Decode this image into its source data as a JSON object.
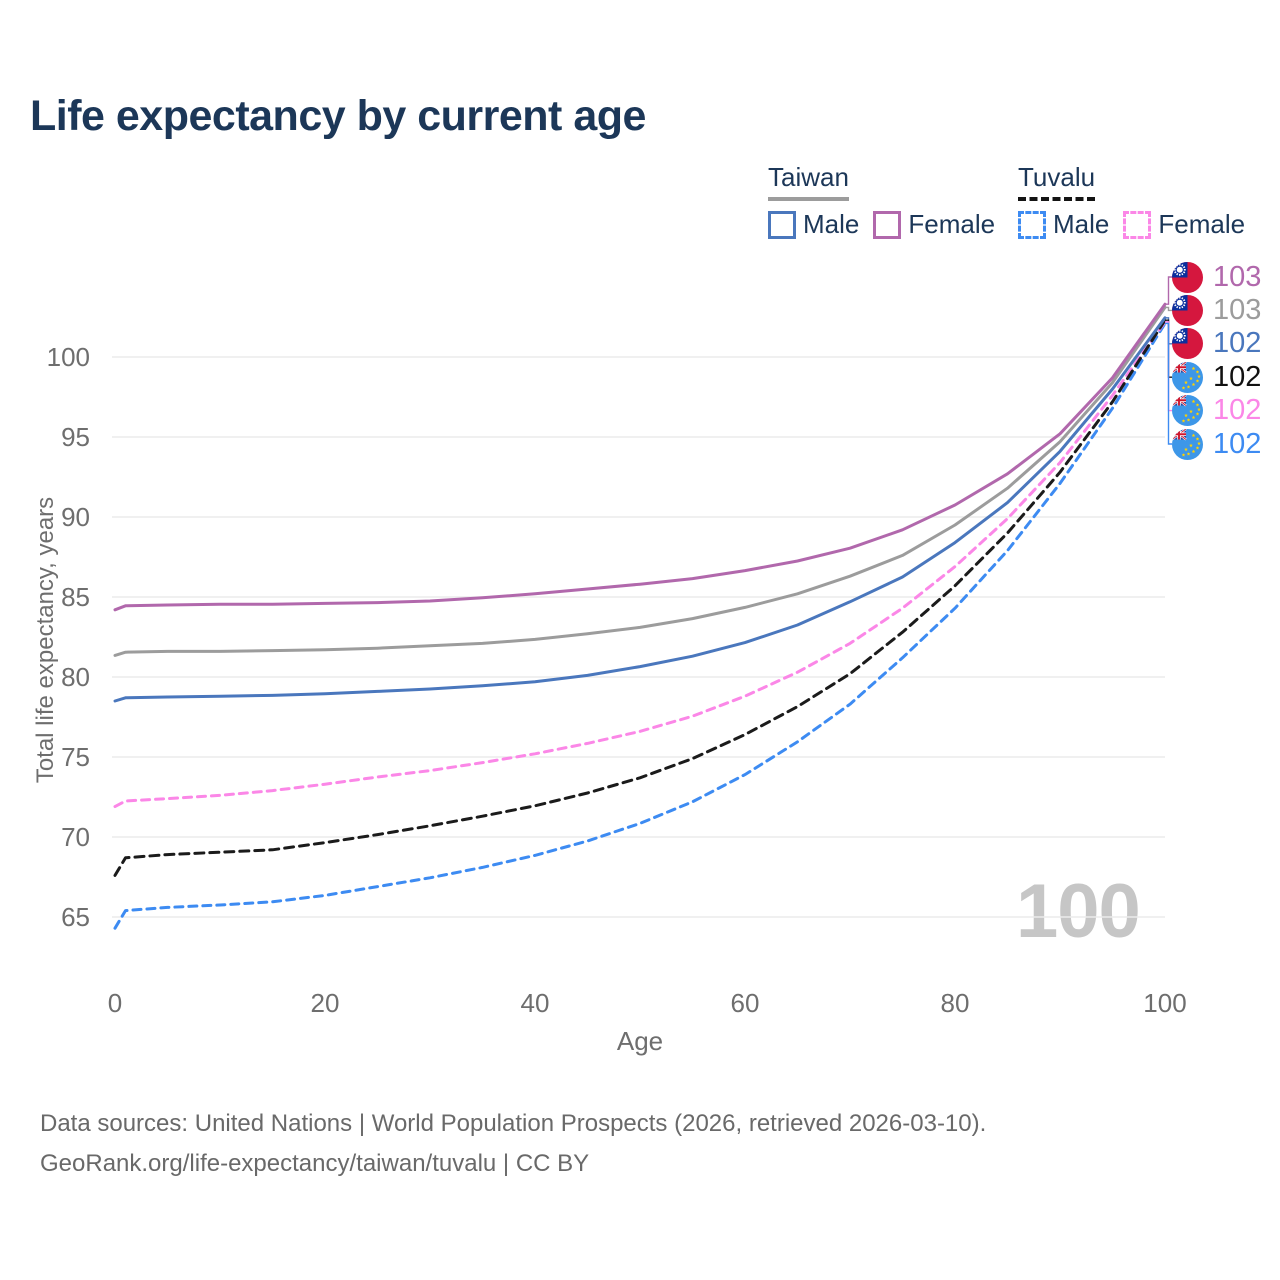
{
  "title": "Life expectancy by current age",
  "watermark": "100",
  "legend": {
    "groups": [
      {
        "name": "Taiwan",
        "line_style": "solid",
        "line_color": "#9c9c9c",
        "items": [
          {
            "label": "Male",
            "color": "#4a77bd"
          },
          {
            "label": "Female",
            "color": "#b168ac"
          }
        ]
      },
      {
        "name": "Tuvalu",
        "line_style": "dashed",
        "line_color": "#141414",
        "items": [
          {
            "label": "Male",
            "color": "#3d8bf2"
          },
          {
            "label": "Female",
            "color": "#fb87e7"
          }
        ]
      }
    ]
  },
  "chart_data": {
    "type": "line",
    "title": "Life expectancy by current age",
    "xlabel": "Age",
    "ylabel": "Total life expectancy, years",
    "xlim": [
      0,
      100
    ],
    "ylim": [
      63,
      104
    ],
    "x_ticks": [
      0,
      20,
      40,
      60,
      80,
      100
    ],
    "y_ticks": [
      65,
      70,
      75,
      80,
      85,
      90,
      95,
      100
    ],
    "grid": "horizontal",
    "x": [
      0,
      1,
      5,
      10,
      15,
      20,
      25,
      30,
      35,
      40,
      45,
      50,
      55,
      60,
      65,
      70,
      75,
      80,
      85,
      90,
      95,
      100
    ],
    "series": [
      {
        "name": "Taiwan Female",
        "country": "Taiwan",
        "sex": "Female",
        "color": "#b168ac",
        "dash": null,
        "values": [
          84.2,
          84.45,
          84.5,
          84.55,
          84.55,
          84.6,
          84.65,
          84.75,
          84.95,
          85.2,
          85.5,
          85.8,
          86.15,
          86.65,
          87.25,
          88.05,
          89.2,
          90.75,
          92.7,
          95.2,
          98.7,
          103.3
        ],
        "end_label": "103",
        "flag": "taiwan"
      },
      {
        "name": "Taiwan",
        "country": "Taiwan",
        "sex": "Both",
        "color": "#9c9c9c",
        "dash": null,
        "values": [
          81.35,
          81.55,
          81.6,
          81.6,
          81.65,
          81.7,
          81.8,
          81.95,
          82.1,
          82.35,
          82.7,
          83.1,
          83.65,
          84.35,
          85.2,
          86.3,
          87.6,
          89.5,
          91.8,
          94.7,
          98.4,
          103.1
        ],
        "end_label": "103",
        "flag": "taiwan"
      },
      {
        "name": "Taiwan Male",
        "country": "Taiwan",
        "sex": "Male",
        "color": "#4a77bd",
        "dash": null,
        "values": [
          78.5,
          78.7,
          78.75,
          78.8,
          78.85,
          78.95,
          79.1,
          79.25,
          79.45,
          79.7,
          80.1,
          80.65,
          81.3,
          82.15,
          83.25,
          84.7,
          86.25,
          88.4,
          90.9,
          94.1,
          98.0,
          102.45
        ],
        "end_label": "102",
        "flag": "taiwan"
      },
      {
        "name": "Tuvalu",
        "country": "Tuvalu",
        "sex": "Both",
        "color": "#1b1b1b",
        "dash": "9 6",
        "values": [
          67.6,
          68.7,
          68.9,
          69.05,
          69.2,
          69.65,
          70.15,
          70.7,
          71.3,
          71.95,
          72.75,
          73.7,
          74.9,
          76.4,
          78.15,
          80.2,
          82.8,
          85.7,
          89.0,
          92.8,
          97.2,
          102.3
        ],
        "end_label": "102",
        "flag": "tuvalu"
      },
      {
        "name": "Tuvalu Female",
        "country": "Tuvalu",
        "sex": "Female",
        "color": "#fb87e7",
        "dash": "8 6",
        "values": [
          71.9,
          72.25,
          72.4,
          72.6,
          72.9,
          73.3,
          73.75,
          74.15,
          74.65,
          75.2,
          75.85,
          76.6,
          77.55,
          78.8,
          80.3,
          82.1,
          84.3,
          86.9,
          89.9,
          93.4,
          97.6,
          102.2
        ],
        "end_label": "102",
        "flag": "tuvalu"
      },
      {
        "name": "Tuvalu Male",
        "country": "Tuvalu",
        "sex": "Male",
        "color": "#3d8bf2",
        "dash": "8 6",
        "values": [
          64.3,
          65.4,
          65.6,
          65.75,
          65.95,
          66.35,
          66.9,
          67.45,
          68.1,
          68.85,
          69.75,
          70.85,
          72.2,
          73.9,
          75.95,
          78.3,
          81.2,
          84.3,
          87.9,
          92.1,
          96.8,
          102.1
        ],
        "end_label": "102",
        "flag": "tuvalu"
      }
    ],
    "flag_colors": {
      "taiwan": {
        "bg": "#d5173e",
        "canton": "#0a2f9e",
        "sun": "#ffffff"
      },
      "tuvalu": {
        "bg": "#3d97e8",
        "canton": "#24439c",
        "cross": "#cf142b",
        "star": "#ffd100"
      }
    }
  },
  "footer": {
    "line1": "Data sources: United Nations | World Population Prospects (2026, retrieved 2026-03-10).",
    "line2": "GeoRank.org/life-expectancy/taiwan/tuvalu | CC BY"
  }
}
